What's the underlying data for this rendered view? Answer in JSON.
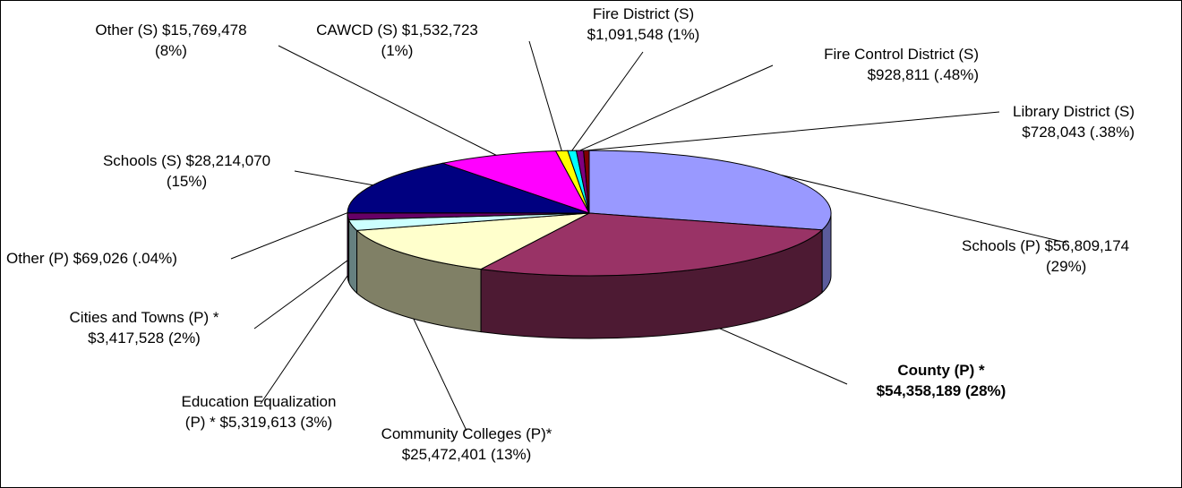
{
  "chart_data": {
    "type": "pie",
    "style": "3d-exploded-pie",
    "slices": [
      {
        "name": "Schools (P)",
        "amount": 56809174,
        "label": [
          "Schools (P) $56,809,174",
          "(29%)"
        ],
        "color": "#9999ff",
        "side": "#5b5b9c"
      },
      {
        "name": "County (P) *",
        "amount": 54358189,
        "label": [
          "County (P) *",
          "$54,358,189 (28%)"
        ],
        "color": "#993366",
        "side": "#4d1a33",
        "bold": true
      },
      {
        "name": "Community Colleges (P)*",
        "amount": 25472401,
        "label": [
          "Community Colleges (P)*",
          "$25,472,401 (13%)"
        ],
        "color": "#ffffcc",
        "side": "#808066"
      },
      {
        "name": "Education Equalization (P) *",
        "amount": 5319613,
        "label": [
          "Education Equalization",
          "(P) * $5,319,613 (3%)"
        ],
        "color": "#ccffff",
        "side": "#668080"
      },
      {
        "name": "Cities and Towns (P) *",
        "amount": 3417528,
        "label": [
          "Cities and Towns (P) *",
          "$3,417,528 (2%)"
        ],
        "color": "#660066",
        "side": "#330033"
      },
      {
        "name": "Other (P)",
        "amount": 69026,
        "label": [
          "Other (P) $69,026 (.04%)"
        ],
        "color": "#ff8080",
        "side": "#804040"
      },
      {
        "name": "Schools (S)",
        "amount": 28214070,
        "label": [
          "Schools (S) $28,214,070",
          "(15%)"
        ],
        "color": "#000080",
        "side": "#000040"
      },
      {
        "name": "Other (S)",
        "amount": 15769478,
        "label": [
          "Other (S) $15,769,478",
          "(8%)"
        ],
        "color": "#ff00ff",
        "side": "#800080"
      },
      {
        "name": "CAWCD (S)",
        "amount": 1532723,
        "label": [
          "CAWCD (S) $1,532,723",
          "(1%)"
        ],
        "color": "#ffff00",
        "side": "#808000"
      },
      {
        "name": "Fire District (S)",
        "amount": 1091548,
        "label": [
          "Fire District (S)",
          "$1,091,548 (1%)"
        ],
        "color": "#00ffff",
        "side": "#008080"
      },
      {
        "name": "Fire Control District (S)",
        "amount": 928811,
        "label": [
          "Fire Control District (S)",
          "$928,811 (.48%)"
        ],
        "color": "#800080",
        "side": "#400040"
      },
      {
        "name": "Library District (S)",
        "amount": 728043,
        "label": [
          "Library District (S)",
          "$728,043 (.38%)"
        ],
        "color": "#800000",
        "side": "#400000"
      }
    ]
  }
}
